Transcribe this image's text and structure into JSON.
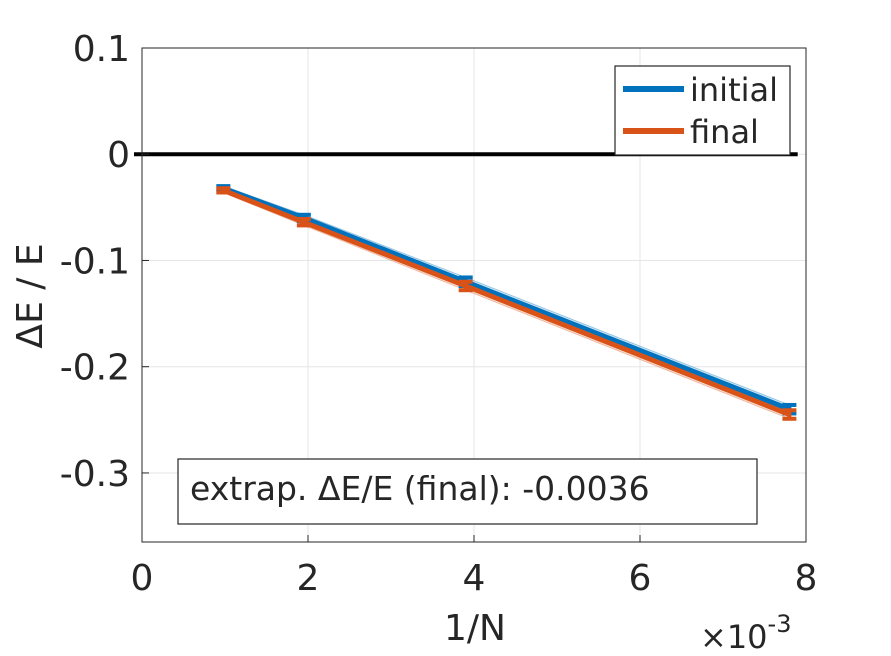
{
  "chart_data": {
    "type": "line",
    "title": "",
    "xlabel": "1/N",
    "ylabel": "ΔE / E",
    "x_multiplier": "×10",
    "x_multiplier_exponent": "-3",
    "xlim": [
      0,
      0.008
    ],
    "ylim": [
      -0.365,
      0.1
    ],
    "xticks": [
      0,
      0.002,
      0.004,
      0.006,
      0.008
    ],
    "xtick_labels": [
      "0",
      "2",
      "4",
      "6",
      "8"
    ],
    "yticks": [
      0.1,
      0,
      -0.1,
      -0.2,
      -0.3
    ],
    "ytick_labels": [
      "0.1",
      "0",
      "-0.1",
      "-0.2",
      "-0.3"
    ],
    "grid": true,
    "legend_placement": "top-right",
    "zero_line": {
      "y": 0,
      "color": "#000000"
    },
    "annotation": "extrap. ΔE/E (final): -0.0036",
    "series": [
      {
        "name": "initial",
        "color": "#0072BD",
        "x": [
          0.00098,
          0.00195,
          0.0039,
          0.0078
        ],
        "y": [
          -0.032,
          -0.06,
          -0.12,
          -0.24
        ],
        "err": [
          0.002,
          0.003,
          0.004,
          0.004
        ]
      },
      {
        "name": "final",
        "color": "#D95319",
        "x": [
          0.00098,
          0.00195,
          0.0039,
          0.0078
        ],
        "y": [
          -0.034,
          -0.064,
          -0.124,
          -0.245
        ],
        "err": [
          0.002,
          0.003,
          0.004,
          0.004
        ]
      }
    ]
  }
}
